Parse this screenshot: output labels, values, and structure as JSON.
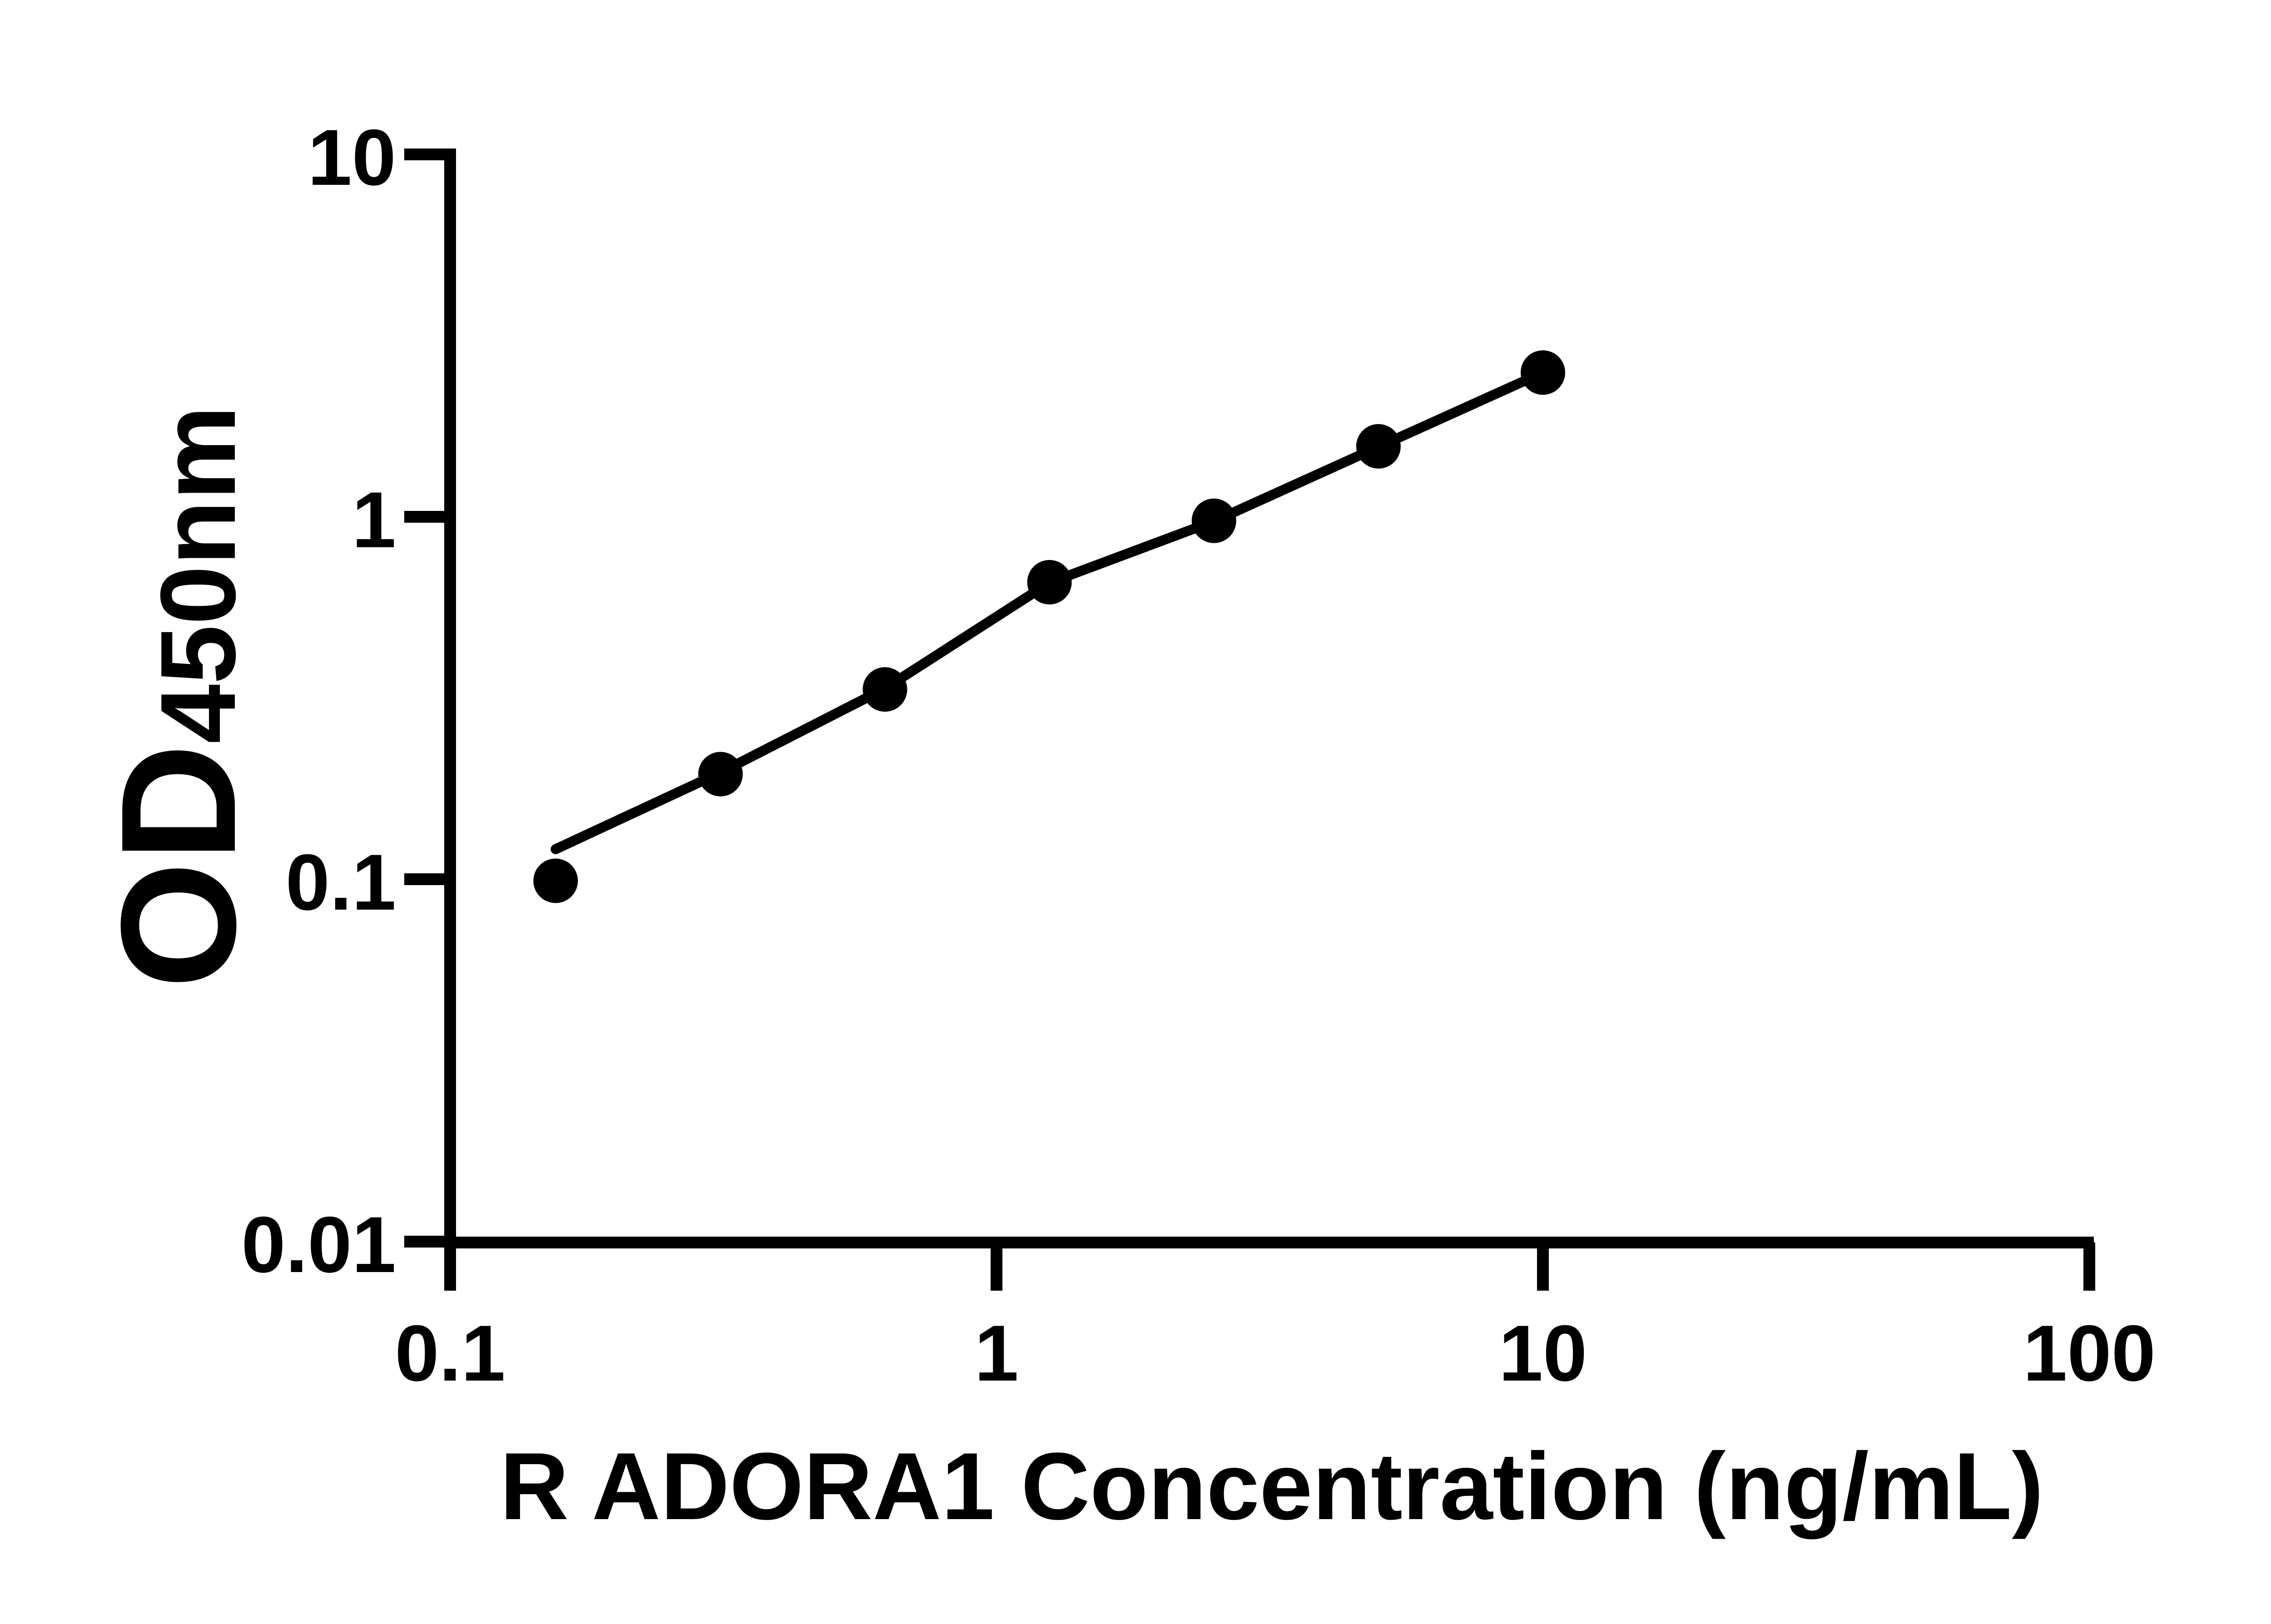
{
  "figure": {
    "background_color": "#ffffff",
    "ink_color": "#000000"
  },
  "chart_data": {
    "type": "scatter",
    "subtype": "log-log standard curve with fitted line",
    "title": "",
    "xlabel": "R ADORA1 Concentration (ng/mL)",
    "ylabel_main": "OD",
    "ylabel_sub": "450nm",
    "xlim": [
      0.1,
      100
    ],
    "ylim": [
      0.01,
      10
    ],
    "x_scale": "log10",
    "y_scale": "log10",
    "grid": "off",
    "legend": "none",
    "x_ticks": [
      0.1,
      1,
      10,
      100
    ],
    "x_tick_labels": [
      "0.1",
      "1",
      "10",
      "100"
    ],
    "y_ticks": [
      0.01,
      0.1,
      1,
      10
    ],
    "y_tick_labels": [
      "0.01",
      "0.1",
      "1",
      "10"
    ],
    "series": [
      {
        "name": "standard-points",
        "marker": "filled-circle",
        "color": "#000000",
        "x": [
          0.156,
          0.3125,
          0.625,
          1.25,
          2.5,
          5,
          10
        ],
        "od": [
          0.099,
          0.195,
          0.334,
          0.66,
          0.975,
          1.565,
          2.5
        ]
      }
    ],
    "fit_curve": {
      "name": "fitted-line",
      "color": "#000000",
      "points": [
        [
          0.156,
          0.121
        ],
        [
          0.3125,
          0.197
        ],
        [
          0.625,
          0.336
        ],
        [
          1.25,
          0.658
        ],
        [
          2.5,
          0.972
        ],
        [
          5,
          1.56
        ],
        [
          10,
          2.5
        ]
      ]
    }
  }
}
